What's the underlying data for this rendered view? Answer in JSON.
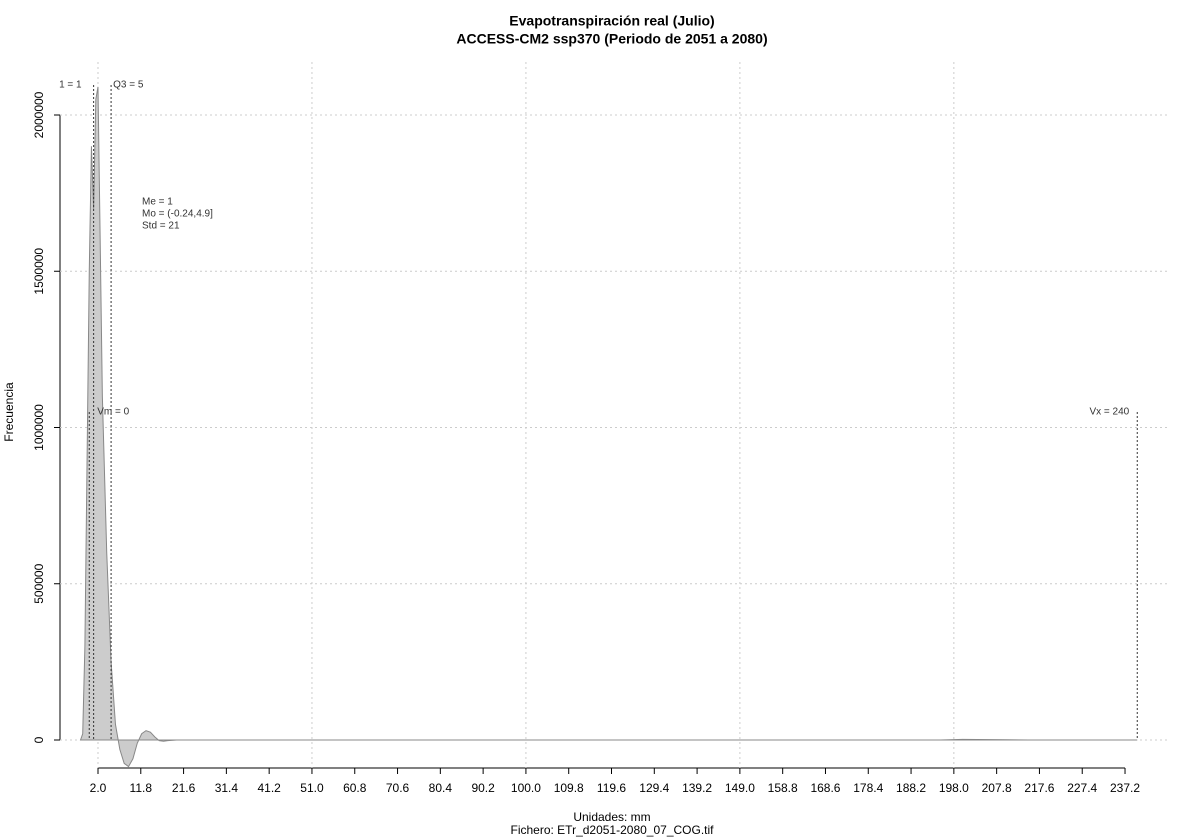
{
  "chart_data": {
    "type": "area",
    "title": "Evapotranspiración real (Julio)",
    "subtitle": "ACCESS-CM2 ssp370 (Periodo de 2051 a 2080)",
    "xlabel": "Unidades: mm",
    "ylabel": "Frecuencia",
    "footer": "Fichero: ETr_d2051-2080_07_COG.tif",
    "color": "#cccccc",
    "x": [
      -2,
      -1.5,
      -1,
      -0.5,
      0,
      0.5,
      1,
      1.5,
      2,
      2.5,
      3,
      4,
      5,
      6,
      7,
      8,
      9,
      10,
      11,
      12,
      13,
      14,
      15,
      16,
      17,
      18,
      20,
      50,
      100,
      150,
      195,
      200,
      210,
      215,
      240
    ],
    "values": [
      0,
      20000,
      300000,
      900000,
      1500000,
      1900000,
      1700000,
      2050000,
      2090000,
      1600000,
      1100000,
      600000,
      250000,
      50000,
      -30000,
      -75000,
      -85000,
      -60000,
      -10000,
      20000,
      30000,
      25000,
      10000,
      -2000,
      -4000,
      -2000,
      0,
      0,
      0,
      0,
      0,
      2000,
      1000,
      0,
      0
    ],
    "xlim": [
      -6.7,
      247.5
    ],
    "ylim": [
      -89600,
      2169600
    ],
    "xticks": [
      {
        "value": 2,
        "label": "2.0"
      },
      11.8,
      21.6,
      31.4,
      41.2,
      {
        "value": 51,
        "label": "51.0"
      },
      60.8,
      70.6,
      80.4,
      90.2,
      {
        "value": 100,
        "label": "100.0"
      },
      109.8,
      119.6,
      129.4,
      139.2,
      {
        "value": 149,
        "label": "149.0"
      },
      158.8,
      168.6,
      178.4,
      188.2,
      {
        "value": 198,
        "label": "198.0"
      },
      207.8,
      217.6,
      227.4,
      237.2
    ],
    "yticks": [
      0,
      500000,
      1000000,
      1500000,
      2000000
    ],
    "grid": true,
    "top_annotations": [
      {
        "label": "1 = 1",
        "x": 1
      },
      {
        "label": "Q3 = 5",
        "x": 5
      }
    ],
    "range_annotations": [
      {
        "label": "Vm = 0",
        "x": 0
      },
      {
        "label": "Vx = 240",
        "x": 240
      }
    ],
    "stats": [
      "Me = 1",
      "Mo = (-0.24,4.9]",
      "Std = 21"
    ]
  }
}
